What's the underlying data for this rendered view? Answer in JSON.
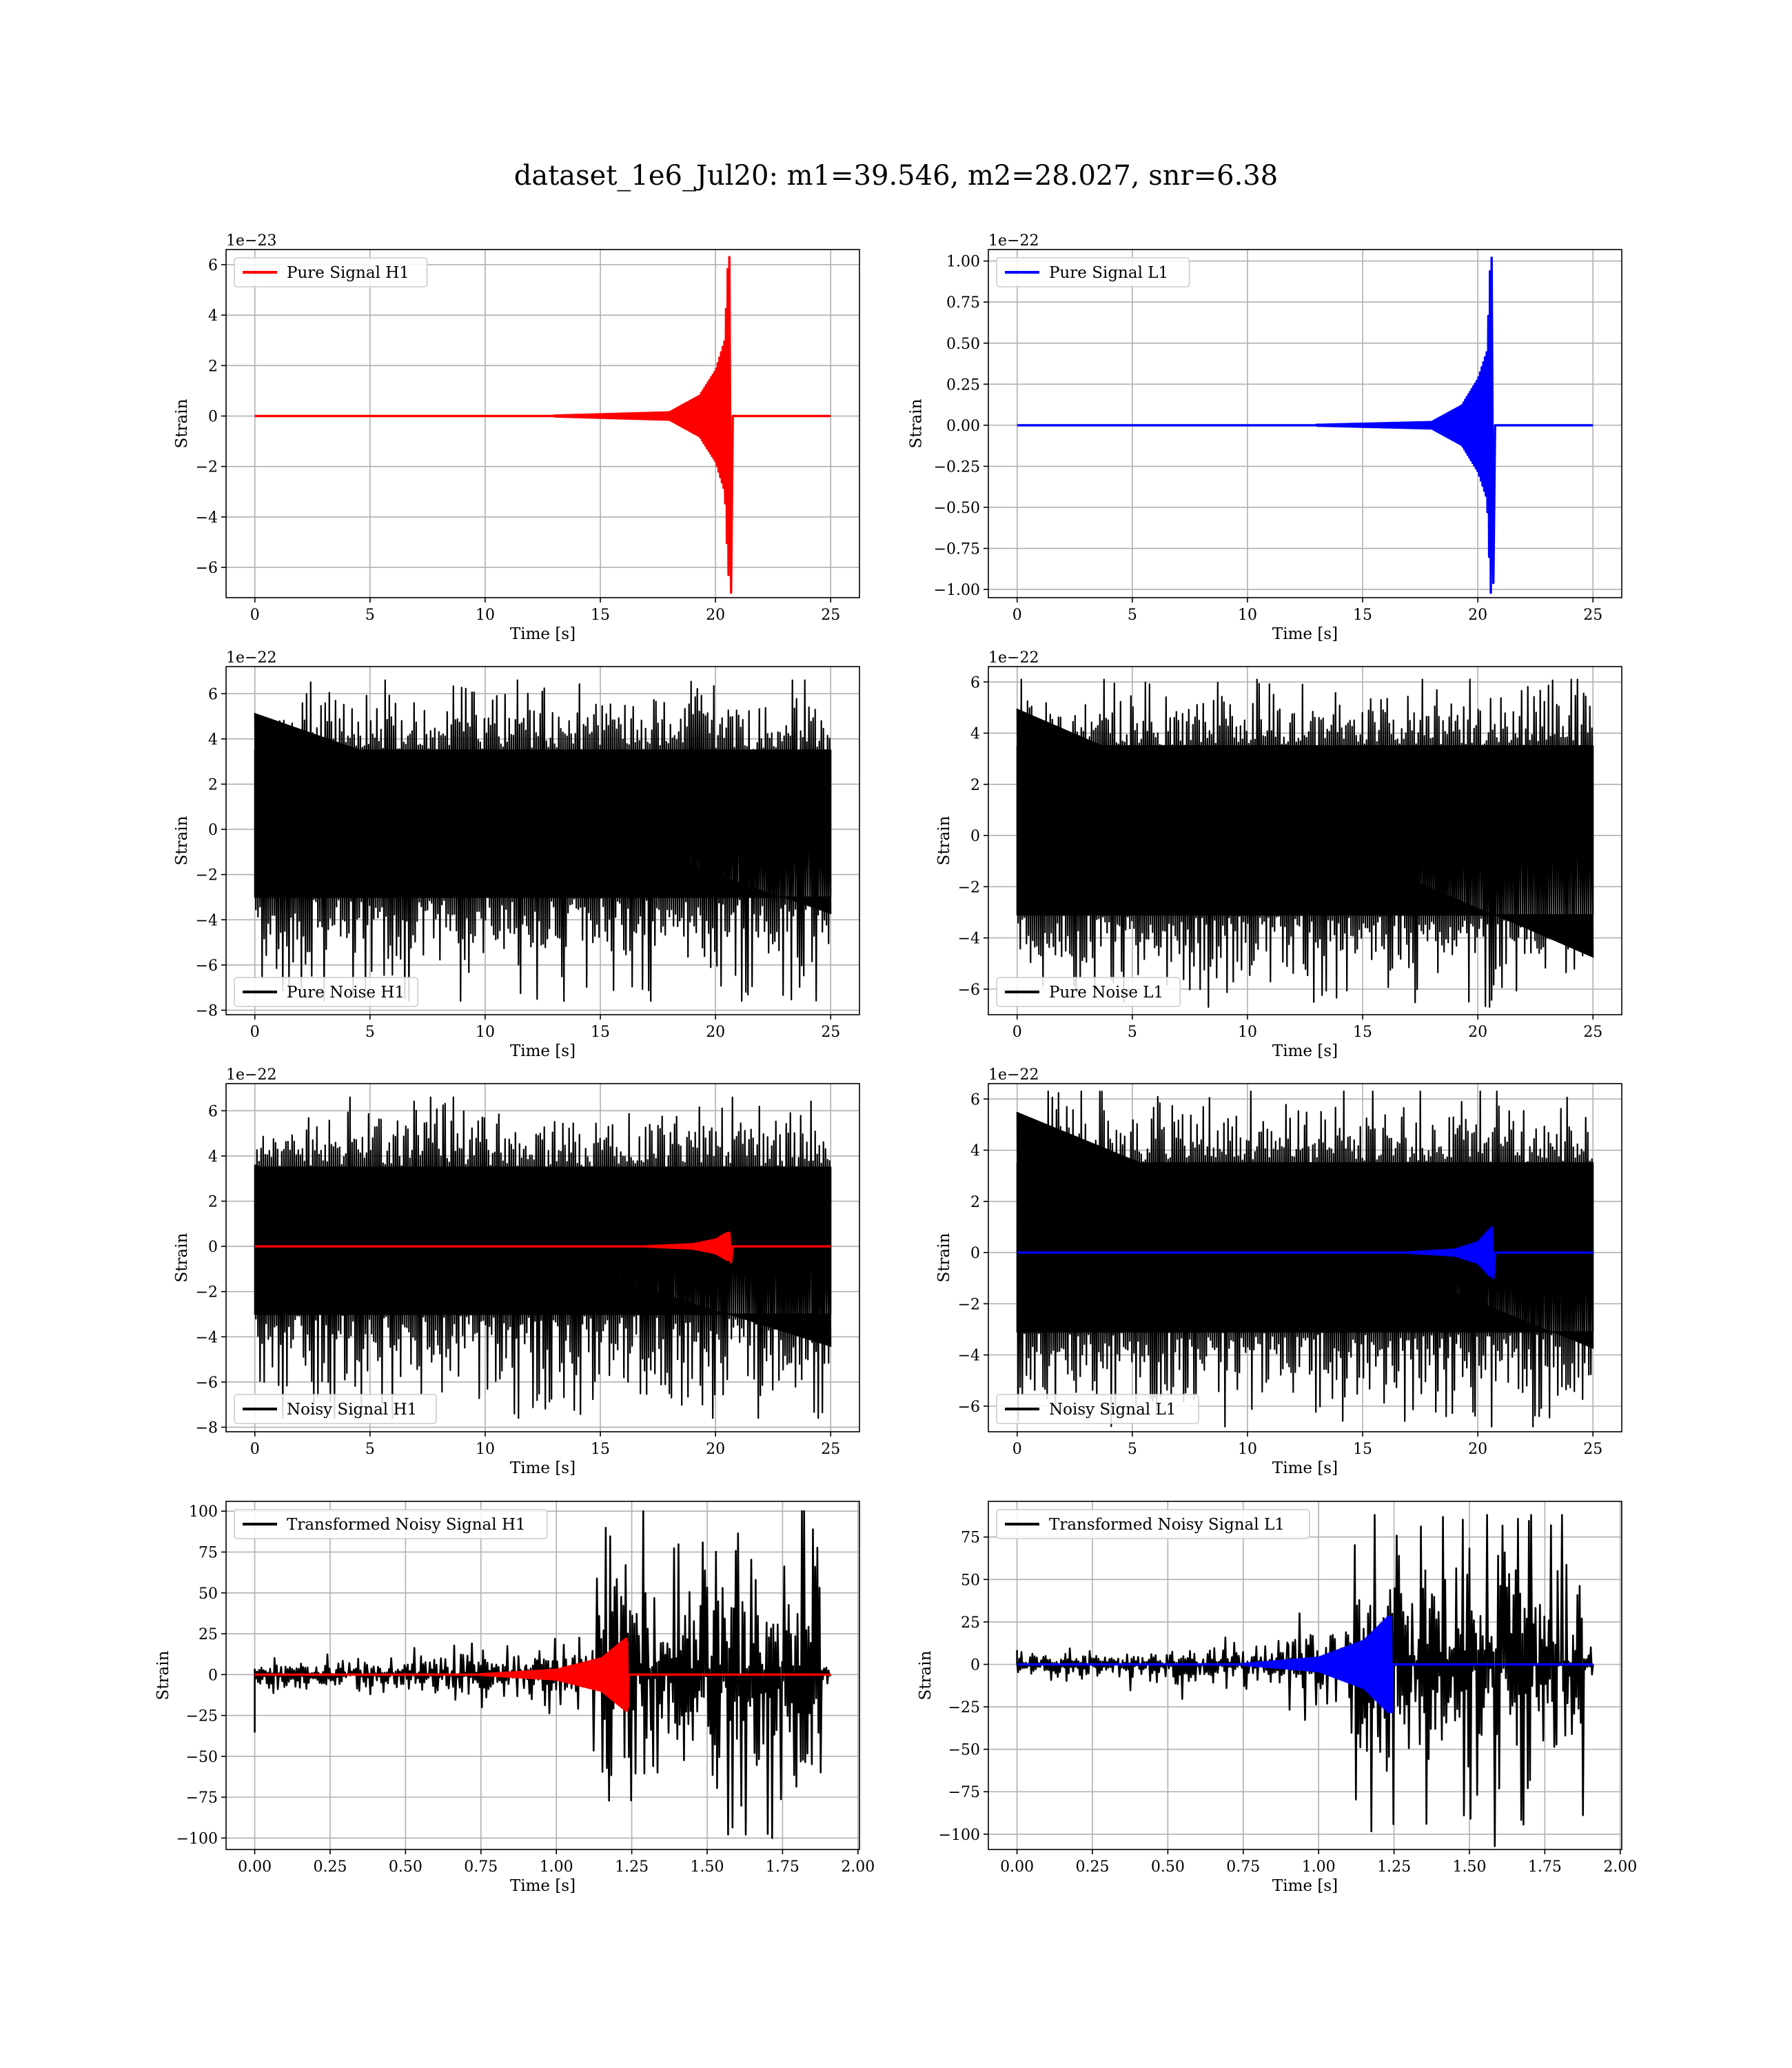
{
  "figure_title": "dataset_1e6_Jul20: m1=39.546, m2=28.027, snr=6.38",
  "colors": {
    "h1_signal": "#ff0000",
    "l1_signal": "#0000ff",
    "noise": "#000000",
    "grid": "#b0b0b0"
  },
  "chart_data": [
    {
      "id": "pure-signal-h1",
      "type": "line",
      "xlabel": "Time [s]",
      "ylabel": "Strain",
      "offset_text": "1e−23",
      "xlim": [
        -1.25,
        26.25
      ],
      "ylim": [
        -7.2,
        6.6
      ],
      "xticks": [
        0,
        5,
        10,
        15,
        20,
        25
      ],
      "xticklabels": [
        "0",
        "5",
        "10",
        "15",
        "20",
        "25"
      ],
      "yticks": [
        -6,
        -4,
        -2,
        0,
        2,
        4,
        6
      ],
      "yticklabels": [
        "−6",
        "−4",
        "−2",
        "0",
        "2",
        "4",
        "6"
      ],
      "legend": "top-left",
      "series": [
        {
          "name": "Pure Signal H1",
          "color": "#ff0000",
          "kind": "chirp",
          "x_range": [
            0,
            25
          ],
          "t_merge": 20.6,
          "t_ring_end": 20.75,
          "envelope": [
            [
              13,
              0.02
            ],
            [
              18,
              0.15
            ],
            [
              19.3,
              0.8
            ],
            [
              20,
              1.8
            ],
            [
              20.4,
              3.0
            ],
            [
              20.55,
              6.3
            ]
          ],
          "peak": [
            6.3,
            -7.0
          ]
        }
      ]
    },
    {
      "id": "pure-signal-l1",
      "type": "line",
      "xlabel": "Time [s]",
      "ylabel": "Strain",
      "offset_text": "1e−22",
      "xlim": [
        -1.25,
        26.25
      ],
      "ylim": [
        -1.05,
        1.07
      ],
      "xticks": [
        0,
        5,
        10,
        15,
        20,
        25
      ],
      "xticklabels": [
        "0",
        "5",
        "10",
        "15",
        "20",
        "25"
      ],
      "yticks": [
        -1.0,
        -0.75,
        -0.5,
        -0.25,
        0.0,
        0.25,
        0.5,
        0.75,
        1.0
      ],
      "yticklabels": [
        "−1.00",
        "−0.75",
        "−0.50",
        "−0.25",
        "0.00",
        "0.25",
        "0.50",
        "0.75",
        "1.00"
      ],
      "legend": "top-left",
      "series": [
        {
          "name": "Pure Signal L1",
          "color": "#0000ff",
          "kind": "chirp",
          "x_range": [
            0,
            25
          ],
          "t_merge": 20.6,
          "t_ring_end": 20.75,
          "envelope": [
            [
              13,
              0.003
            ],
            [
              18,
              0.02
            ],
            [
              19.3,
              0.12
            ],
            [
              20,
              0.28
            ],
            [
              20.4,
              0.45
            ],
            [
              20.55,
              1.02
            ]
          ],
          "peak": [
            1.02,
            -0.96
          ]
        }
      ]
    },
    {
      "id": "pure-noise-h1",
      "type": "line",
      "xlabel": "Time [s]",
      "ylabel": "Strain",
      "offset_text": "1e−22",
      "xlim": [
        -1.25,
        26.25
      ],
      "ylim": [
        -8.2,
        7.2
      ],
      "xticks": [
        0,
        5,
        10,
        15,
        20,
        25
      ],
      "xticklabels": [
        "0",
        "5",
        "10",
        "15",
        "20",
        "25"
      ],
      "yticks": [
        -8,
        -6,
        -4,
        -2,
        0,
        2,
        4,
        6
      ],
      "yticklabels": [
        "−8",
        "−6",
        "−4",
        "−2",
        "0",
        "2",
        "4",
        "6"
      ],
      "legend": "bottom-left",
      "series": [
        {
          "name": "Pure Noise H1",
          "color": "#000000",
          "kind": "noise",
          "x_range": [
            0,
            25
          ],
          "band": [
            -3.0,
            3.5
          ],
          "extremes": [
            6.6,
            -7.6
          ]
        }
      ]
    },
    {
      "id": "pure-noise-l1",
      "type": "line",
      "xlabel": "Time [s]",
      "ylabel": "Strain",
      "offset_text": "1e−22",
      "xlim": [
        -1.25,
        26.25
      ],
      "ylim": [
        -7.0,
        6.6
      ],
      "xticks": [
        0,
        5,
        10,
        15,
        20,
        25
      ],
      "xticklabels": [
        "0",
        "5",
        "10",
        "15",
        "20",
        "25"
      ],
      "yticks": [
        -6,
        -4,
        -2,
        0,
        2,
        4,
        6
      ],
      "yticklabels": [
        "−6",
        "−4",
        "−2",
        "0",
        "2",
        "4",
        "6"
      ],
      "legend": "bottom-left",
      "series": [
        {
          "name": "Pure Noise L1",
          "color": "#000000",
          "kind": "noise",
          "x_range": [
            0,
            25
          ],
          "band": [
            -3.1,
            3.5
          ],
          "extremes": [
            6.1,
            -6.7
          ]
        }
      ]
    },
    {
      "id": "noisy-signal-h1",
      "type": "line",
      "xlabel": "Time [s]",
      "ylabel": "Strain",
      "offset_text": "1e−22",
      "xlim": [
        -1.25,
        26.25
      ],
      "ylim": [
        -8.2,
        7.2
      ],
      "xticks": [
        0,
        5,
        10,
        15,
        20,
        25
      ],
      "xticklabels": [
        "0",
        "5",
        "10",
        "15",
        "20",
        "25"
      ],
      "yticks": [
        -8,
        -6,
        -4,
        -2,
        0,
        2,
        4,
        6
      ],
      "yticklabels": [
        "−8",
        "−6",
        "−4",
        "−2",
        "0",
        "2",
        "4",
        "6"
      ],
      "legend": "bottom-left",
      "series": [
        {
          "name": "Noisy Signal H1",
          "color": "#000000",
          "kind": "noise",
          "x_range": [
            0,
            25
          ],
          "band": [
            -3.0,
            3.5
          ],
          "extremes": [
            6.6,
            -7.6
          ]
        },
        {
          "name": "",
          "color": "#ff0000",
          "kind": "chirp",
          "x_range": [
            0,
            25
          ],
          "t_merge": 20.6,
          "t_ring_end": 20.75,
          "envelope": [
            [
              17,
              0.01
            ],
            [
              19,
              0.1
            ],
            [
              20,
              0.3
            ],
            [
              20.5,
              0.6
            ]
          ],
          "peak": [
            0.6,
            -0.7
          ]
        }
      ]
    },
    {
      "id": "noisy-signal-l1",
      "type": "line",
      "xlabel": "Time [s]",
      "ylabel": "Strain",
      "offset_text": "1e−22",
      "xlim": [
        -1.25,
        26.25
      ],
      "ylim": [
        -7.0,
        6.6
      ],
      "xticks": [
        0,
        5,
        10,
        15,
        20,
        25
      ],
      "xticklabels": [
        "0",
        "5",
        "10",
        "15",
        "20",
        "25"
      ],
      "yticks": [
        -6,
        -4,
        -2,
        0,
        2,
        4,
        6
      ],
      "yticklabels": [
        "−6",
        "−4",
        "−2",
        "0",
        "2",
        "4",
        "6"
      ],
      "legend": "bottom-left",
      "series": [
        {
          "name": "Noisy Signal L1",
          "color": "#000000",
          "kind": "noise",
          "x_range": [
            0,
            25
          ],
          "band": [
            -3.1,
            3.5
          ],
          "extremes": [
            6.3,
            -6.8
          ]
        },
        {
          "name": "",
          "color": "#0000ff",
          "kind": "chirp",
          "x_range": [
            0,
            25
          ],
          "t_merge": 20.6,
          "t_ring_end": 20.75,
          "envelope": [
            [
              17,
              0.01
            ],
            [
              19,
              0.12
            ],
            [
              20,
              0.4
            ],
            [
              20.5,
              0.9
            ]
          ],
          "peak": [
            1.0,
            -1.0
          ]
        }
      ]
    },
    {
      "id": "transformed-noisy-signal-h1",
      "type": "line",
      "xlabel": "Time [s]",
      "ylabel": "Strain",
      "offset_text": "",
      "xlim": [
        -0.095,
        2.005
      ],
      "ylim": [
        -107,
        106
      ],
      "xticks": [
        0,
        0.25,
        0.5,
        0.75,
        1.0,
        1.25,
        1.5,
        1.75,
        2.0
      ],
      "xticklabels": [
        "0.00",
        "0.25",
        "0.50",
        "0.75",
        "1.00",
        "1.25",
        "1.50",
        "1.75",
        "2.00"
      ],
      "yticks": [
        -100,
        -75,
        -50,
        -25,
        0,
        25,
        50,
        75,
        100
      ],
      "yticklabels": [
        "−100",
        "−75",
        "−50",
        "−25",
        "0",
        "25",
        "50",
        "75",
        "100"
      ],
      "legend": "top-left",
      "series": [
        {
          "name": "Transformed Noisy Signal H1",
          "color": "#000000",
          "kind": "transformed",
          "x_range": [
            0,
            1.91
          ],
          "segments": [
            [
              0,
              0.5,
              6
            ],
            [
              0.5,
              0.9,
              9
            ],
            [
              0.9,
              1.12,
              14
            ],
            [
              1.12,
              1.88,
              52
            ],
            [
              1.88,
              1.91,
              8
            ]
          ],
          "extremes": [
            100,
            -100
          ],
          "edge_spike": -35
        },
        {
          "name": "",
          "color": "#ff0000",
          "kind": "chirp",
          "x_range": [
            0,
            1.91
          ],
          "t_merge": 1.235,
          "t_ring_end": 1.24,
          "envelope": [
            [
              0.75,
              0.3
            ],
            [
              1.0,
              3
            ],
            [
              1.15,
              10
            ],
            [
              1.23,
              22
            ]
          ],
          "peak": [
            20,
            -20
          ]
        }
      ]
    },
    {
      "id": "transformed-noisy-signal-l1",
      "type": "line",
      "xlabel": "Time [s]",
      "ylabel": "Strain",
      "offset_text": "",
      "xlim": [
        -0.095,
        2.005
      ],
      "ylim": [
        -109,
        96
      ],
      "xticks": [
        0,
        0.25,
        0.5,
        0.75,
        1.0,
        1.25,
        1.5,
        1.75,
        2.0
      ],
      "xticklabels": [
        "0.00",
        "0.25",
        "0.50",
        "0.75",
        "1.00",
        "1.25",
        "1.50",
        "1.75",
        "2.00"
      ],
      "yticks": [
        -100,
        -75,
        -50,
        -25,
        0,
        25,
        50,
        75
      ],
      "yticklabels": [
        "−100",
        "−75",
        "−50",
        "−25",
        "0",
        "25",
        "50",
        "75"
      ],
      "legend": "top-left",
      "series": [
        {
          "name": "Transformed Noisy Signal L1",
          "color": "#000000",
          "kind": "transformed",
          "x_range": [
            0,
            1.91
          ],
          "segments": [
            [
              0,
              0.5,
              6
            ],
            [
              0.5,
              0.9,
              9
            ],
            [
              0.9,
              1.12,
              18
            ],
            [
              1.12,
              1.88,
              52
            ],
            [
              1.88,
              1.91,
              8
            ]
          ],
          "extremes": [
            88,
            -107
          ],
          "edge_spike": 8
        },
        {
          "name": "",
          "color": "#0000ff",
          "kind": "chirp",
          "x_range": [
            0,
            1.91
          ],
          "t_merge": 1.24,
          "t_ring_end": 1.245,
          "envelope": [
            [
              0.75,
              0.3
            ],
            [
              1.0,
              4
            ],
            [
              1.15,
              14
            ],
            [
              1.23,
              28
            ]
          ],
          "peak": [
            28,
            -28
          ]
        }
      ]
    }
  ]
}
